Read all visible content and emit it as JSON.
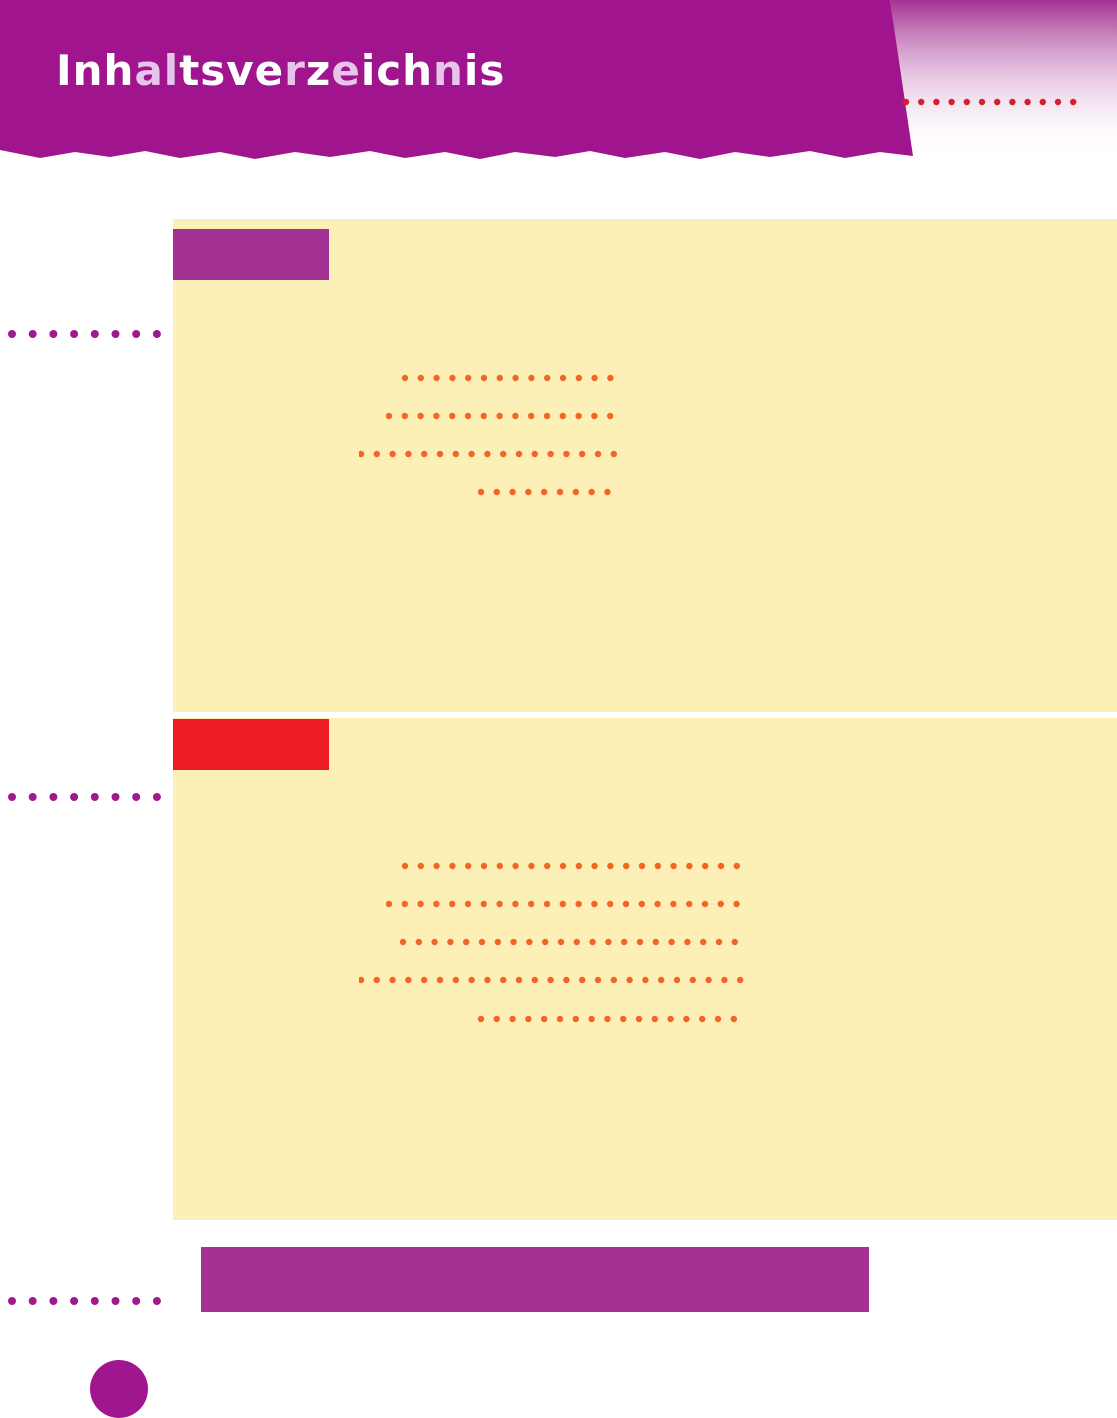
{
  "header": {
    "title": "Inhaltsverzeichnis",
    "title_segments": [
      "Inh",
      "a",
      "l",
      "t",
      "sve",
      "r",
      "z",
      "e",
      "ich",
      "n",
      "is"
    ],
    "title_segment_tones": [
      "w",
      "l",
      "l",
      "w",
      "w",
      "l",
      "w",
      "l",
      "w",
      "l",
      "w"
    ]
  },
  "colors": {
    "header_band": "#a0158e",
    "header_fade": "#a43293",
    "panel_background": "#fcf0b7",
    "tab_purple": "#a43293",
    "tab_red": "#ed1c24",
    "orange_dots": "#f26522",
    "purple_dots": "#9e1a8d",
    "red_dots": "#d61f26",
    "bottom_bar": "#a43293",
    "page_circle": "#a0168f"
  },
  "sections": [
    {
      "tab_color": "purple",
      "leader_rows": 4
    },
    {
      "tab_color": "red",
      "leader_rows": 5
    }
  ]
}
